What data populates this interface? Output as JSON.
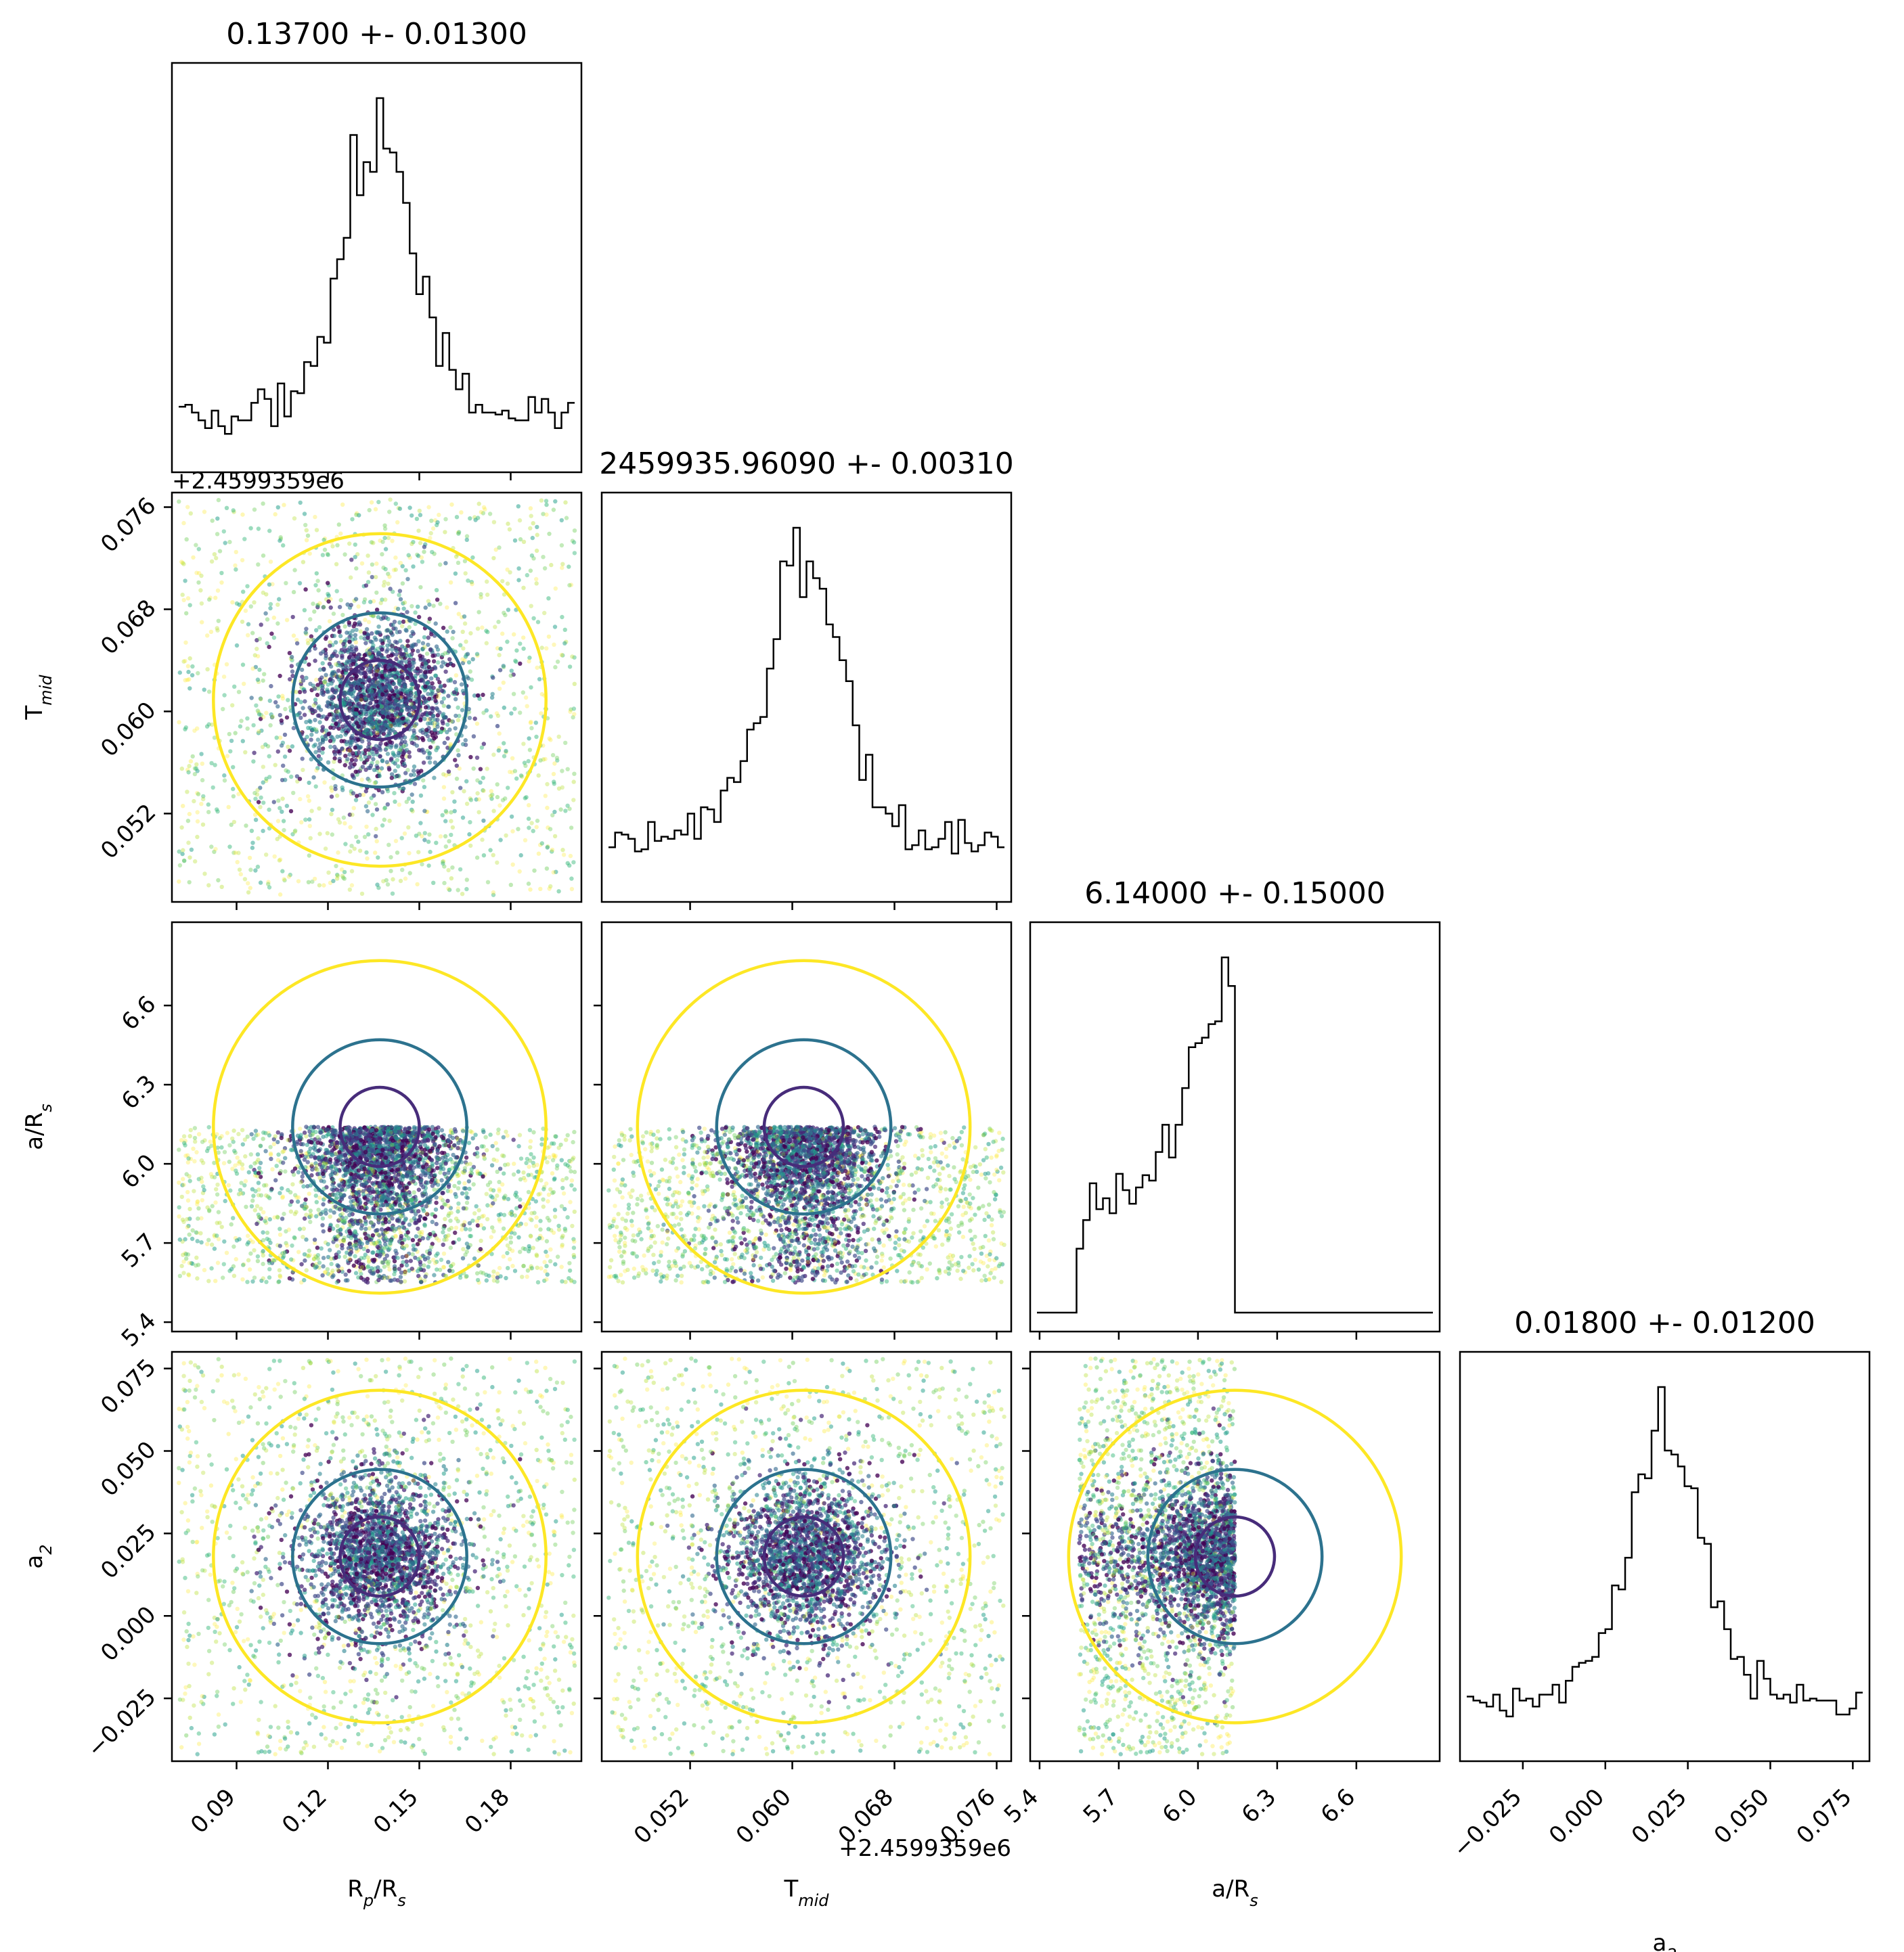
{
  "chart_data": {
    "type": "corner",
    "params": [
      "Rp/Rs",
      "Tmid",
      "a/Rs",
      "a2"
    ],
    "titles": [
      "0.13700 +- 0.01300",
      "2459935.96090 +- 0.00310",
      "6.14000 +- 0.15000",
      "0.01800 +- 0.01200"
    ],
    "axis_labels": {
      "rp": {
        "base": "R",
        "sub": "p",
        "mid": "/R",
        "sub2": "s"
      },
      "tmid": {
        "base": "T",
        "sub": "mid"
      },
      "ars": {
        "base": "a/R",
        "sub": "s"
      },
      "a2": {
        "base": "a",
        "sub": "2"
      }
    },
    "offset_text": "+2.4599359e6",
    "ranges": {
      "rp": [
        0.071,
        0.201
      ],
      "tmid": [
        0.04561,
        0.07661
      ],
      "ars": [
        5.39,
        6.89
      ],
      "a2": [
        -0.042,
        0.078
      ]
    },
    "ticks": {
      "rp": {
        "values": [
          0.09,
          0.12,
          0.15,
          0.18
        ],
        "labels": [
          "0.09",
          "0.12",
          "0.15",
          "0.18"
        ]
      },
      "tmid": {
        "values": [
          0.052,
          0.06,
          0.068,
          0.076
        ],
        "labels": [
          "0.052",
          "0.060",
          "0.068",
          "0.076"
        ]
      },
      "ars": {
        "values": [
          5.4,
          5.7,
          6.0,
          6.3,
          6.6
        ],
        "labels": [
          "5.4",
          "5.7",
          "6.0",
          "6.3",
          "6.6"
        ]
      },
      "a2": {
        "values": [
          -0.025,
          0.0,
          0.025,
          0.05,
          0.075
        ],
        "labels": [
          "−0.025",
          "0.000",
          "0.025",
          "0.050",
          "0.075"
        ]
      }
    },
    "centers": {
      "rp": 0.137,
      "tmid": 0.0609,
      "ars": 6.14,
      "a2": 0.018
    },
    "sigmas": {
      "rp": 0.013,
      "tmid": 0.0031,
      "ars": 0.15,
      "a2": 0.012
    },
    "ars_prior_bounds": [
      5.55,
      6.14
    ],
    "contour_levels": [
      "inner",
      "middle",
      "outer"
    ],
    "colors": {
      "inner": "#472c7a",
      "middle": "#2c728e",
      "outer": "#fde725",
      "hist": "#000000",
      "scatter": [
        "#fde725",
        "#b5de2b",
        "#6ece58",
        "#35b779",
        "#1f9e89",
        "#26828e",
        "#31688e",
        "#3e4989",
        "#482878",
        "#440154"
      ]
    }
  }
}
